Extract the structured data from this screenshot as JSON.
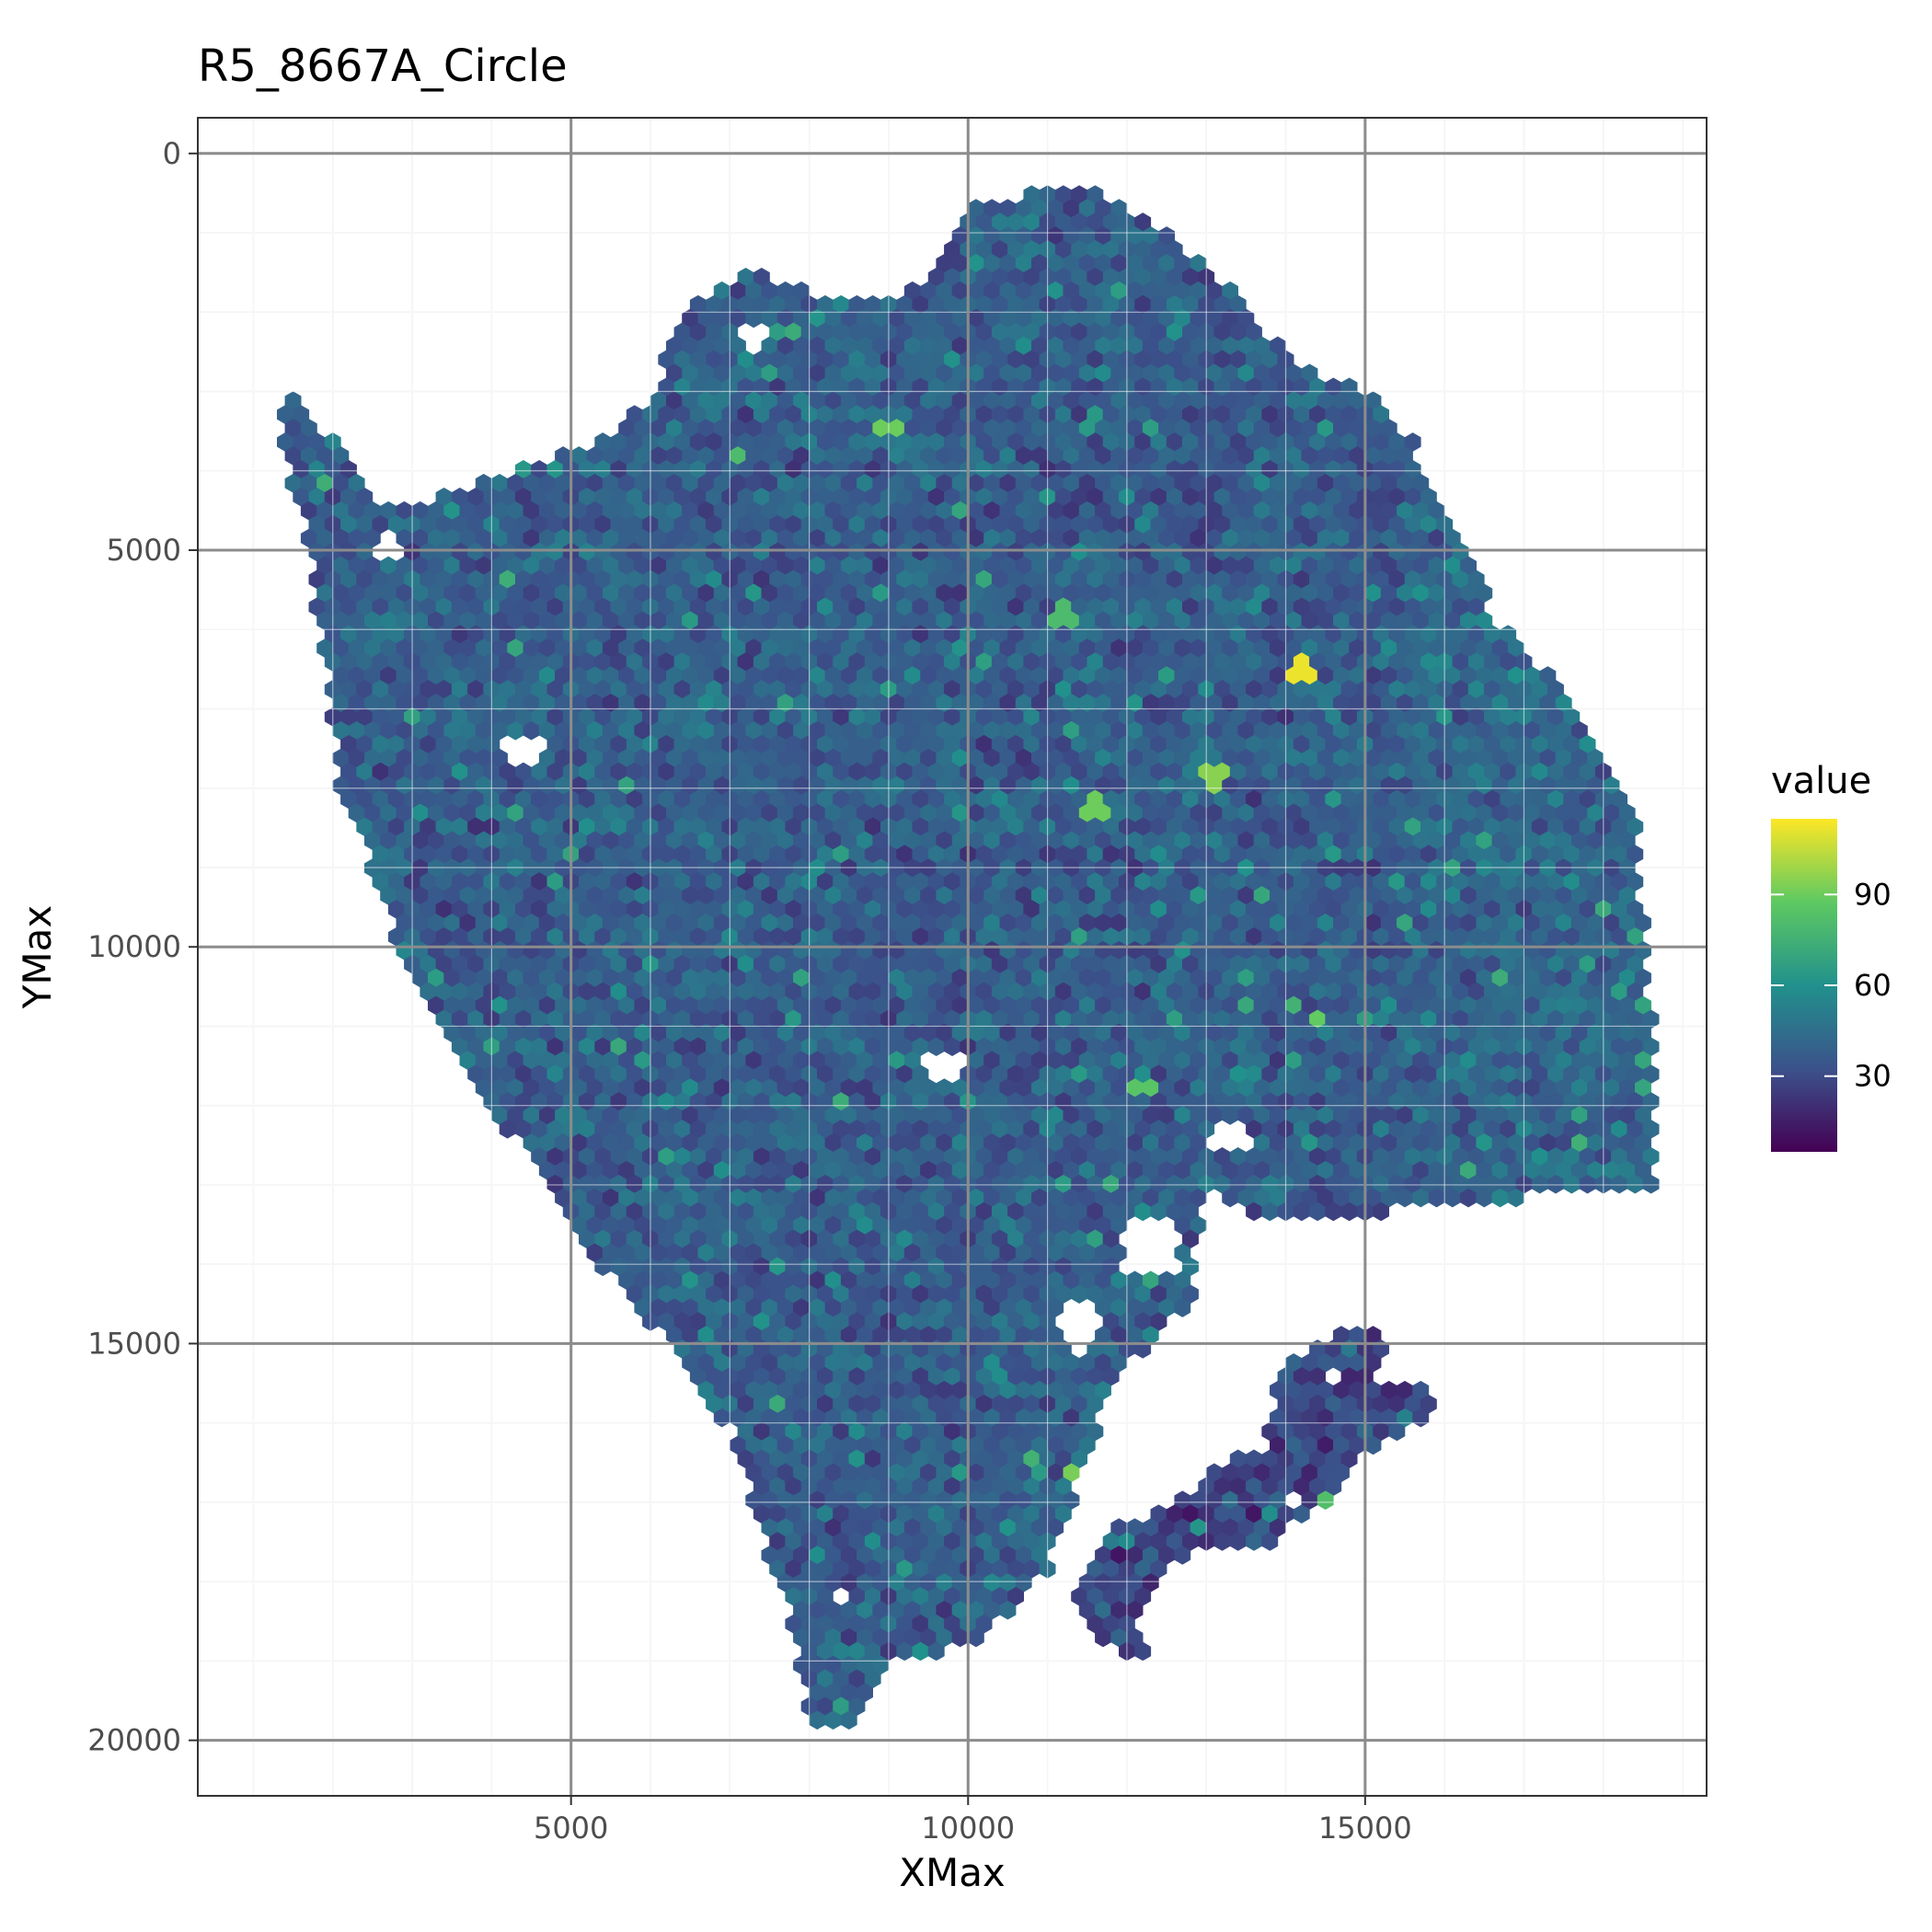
{
  "chart_data": {
    "type": "heatmap",
    "subtype": "hexbin",
    "title": "R5_8667A_Circle",
    "xlabel": "XMax",
    "ylabel": "YMax",
    "xlim": [
      300,
      19300
    ],
    "ylim": [
      20700,
      -450
    ],
    "y_reversed": true,
    "x_ticks": [
      "5000",
      "10000",
      "15000"
    ],
    "y_ticks": [
      "0",
      "5000",
      "10000",
      "15000",
      "20000"
    ],
    "x_tick_values": [
      5000,
      10000,
      15000
    ],
    "y_tick_values": [
      0,
      5000,
      10000,
      15000,
      20000
    ],
    "grid": true,
    "colormap": "viridis",
    "colormap_stops": [
      "#440154",
      "#3b528b",
      "#21918c",
      "#5ec962",
      "#fde725"
    ],
    "value_range": [
      5,
      115
    ],
    "typical_value_range": [
      20,
      55
    ],
    "hex_spacing": 200,
    "legend": {
      "title": "value",
      "position": "right",
      "ticks": [
        "30",
        "60",
        "90"
      ],
      "tick_values": [
        30,
        60,
        90
      ]
    },
    "main_region": [
      [
        1500,
        3000
      ],
      [
        2600,
        4400
      ],
      [
        3500,
        4300
      ],
      [
        5600,
        3500
      ],
      [
        6100,
        2900
      ],
      [
        6300,
        2100
      ],
      [
        7300,
        1450
      ],
      [
        8000,
        1750
      ],
      [
        9000,
        1900
      ],
      [
        9500,
        1500
      ],
      [
        10000,
        600
      ],
      [
        10800,
        500
      ],
      [
        11500,
        400
      ],
      [
        12300,
        800
      ],
      [
        13300,
        1700
      ],
      [
        14200,
        2700
      ],
      [
        15100,
        3000
      ],
      [
        15600,
        3600
      ],
      [
        16100,
        4800
      ],
      [
        16700,
        5900
      ],
      [
        17500,
        6800
      ],
      [
        18400,
        8200
      ],
      [
        18600,
        10800
      ],
      [
        18700,
        13000
      ],
      [
        16500,
        13200
      ],
      [
        14000,
        13500
      ],
      [
        13000,
        13100
      ],
      [
        12800,
        14500
      ],
      [
        11800,
        15500
      ],
      [
        11400,
        16800
      ],
      [
        11000,
        17900
      ],
      [
        10100,
        18800
      ],
      [
        9100,
        19000
      ],
      [
        8500,
        19800
      ],
      [
        8000,
        19900
      ],
      [
        7700,
        18300
      ],
      [
        7000,
        16100
      ],
      [
        6200,
        15000
      ],
      [
        5500,
        14200
      ],
      [
        4200,
        12300
      ],
      [
        3100,
        10700
      ],
      [
        2100,
        8000
      ],
      [
        1700,
        5000
      ],
      [
        1300,
        3400
      ]
    ],
    "lower_region": [
      [
        12000,
        18500
      ],
      [
        12700,
        17700
      ],
      [
        13800,
        17500
      ],
      [
        14600,
        16900
      ],
      [
        15100,
        16300
      ],
      [
        15900,
        15900
      ],
      [
        15700,
        15400
      ],
      [
        14700,
        15800
      ],
      [
        14300,
        16300
      ],
      [
        13300,
        16400
      ],
      [
        12600,
        17000
      ],
      [
        11700,
        17400
      ],
      [
        11300,
        18000
      ],
      [
        11600,
        18800
      ],
      [
        12300,
        19000
      ]
    ],
    "right_region": [
      [
        13900,
        15300
      ],
      [
        14800,
        14800
      ],
      [
        15300,
        14900
      ],
      [
        15000,
        16400
      ],
      [
        14500,
        16900
      ],
      [
        13700,
        16600
      ]
    ],
    "holes": [
      [
        7300,
        2300,
        220
      ],
      [
        4400,
        7500,
        240
      ],
      [
        12300,
        13800,
        380
      ],
      [
        11400,
        14800,
        300
      ],
      [
        14600,
        15400,
        180
      ],
      [
        9700,
        11500,
        240
      ],
      [
        14100,
        17000,
        160
      ],
      [
        8400,
        18200,
        180
      ],
      [
        13300,
        12400,
        220
      ],
      [
        2700,
        5000,
        180
      ]
    ],
    "hotspots": [
      [
        14200,
        6500,
        112
      ],
      [
        9000,
        3500,
        90
      ],
      [
        13100,
        7900,
        95
      ],
      [
        11600,
        8200,
        90
      ],
      [
        14400,
        10900,
        88
      ],
      [
        11400,
        16600,
        92
      ],
      [
        12200,
        11800,
        85
      ],
      [
        7100,
        3800,
        80
      ],
      [
        11200,
        5800,
        80
      ],
      [
        14600,
        17000,
        82
      ]
    ]
  }
}
